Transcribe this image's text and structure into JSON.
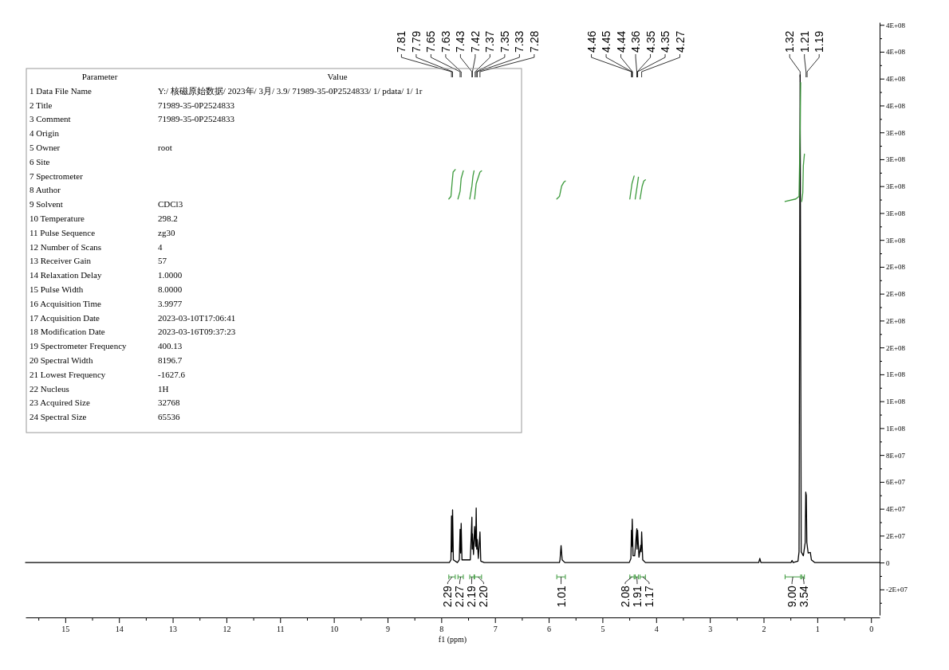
{
  "chart_data": [
    {
      "type": "line",
      "xlabel": "f1 (ppm)",
      "xlim": [
        15.74,
        -0.16
      ],
      "ylim": [
        -41000000.0,
        422000000.0
      ],
      "xticks": [
        15,
        {
          "value": 14.5,
          "label": null
        },
        14,
        {
          "value": 13.5,
          "label": null
        },
        13,
        {
          "value": 12.5,
          "label": null
        },
        12,
        {
          "value": 11.5,
          "label": null
        },
        11,
        {
          "value": 10.5,
          "label": null
        },
        10,
        {
          "value": 9.5,
          "label": null
        },
        9,
        {
          "value": 8.5,
          "label": null
        },
        8,
        {
          "value": 7.5,
          "label": null
        },
        7,
        {
          "value": 6.5,
          "label": null
        },
        6,
        {
          "value": 5.5,
          "label": null
        },
        5,
        {
          "value": 4.5,
          "label": null
        },
        4,
        {
          "value": 3.5,
          "label": null
        },
        3,
        {
          "value": 2.5,
          "label": null
        },
        2,
        {
          "value": 1.5,
          "label": null
        },
        1,
        {
          "value": 0.5,
          "label": null
        },
        0,
        {
          "value": 15.5,
          "label": null
        }
      ],
      "yticks": [
        {
          "value": -21000000.0,
          "label": "-2E+07"
        },
        0,
        {
          "value": 21000000.0,
          "label": "2E+07"
        },
        {
          "value": 42000000.0,
          "label": "4E+07"
        },
        {
          "value": 63000000.0,
          "label": "6E+07"
        },
        {
          "value": 84000000.0,
          "label": "8E+07"
        },
        {
          "value": 105000000.0,
          "label": "1E+08"
        },
        {
          "value": 126000000.0,
          "label": "1E+08"
        },
        {
          "value": 147000000.0,
          "label": "1E+08"
        },
        {
          "value": 168000000.0,
          "label": "2E+08"
        },
        {
          "value": 189000000.0,
          "label": "2E+08"
        },
        {
          "value": 210000000.0,
          "label": "2E+08"
        },
        {
          "value": 231000000.0,
          "label": "2E+08"
        },
        {
          "value": 252000000.0,
          "label": "3E+08"
        },
        {
          "value": 273000000.0,
          "label": "3E+08"
        },
        {
          "value": 294000000.0,
          "label": "3E+08"
        },
        {
          "value": 315000000.0,
          "label": "3E+08"
        },
        {
          "value": 336000000.0,
          "label": "3E+08"
        },
        {
          "value": 357000000.0,
          "label": "4E+08"
        },
        {
          "value": 378000000.0,
          "label": "4E+08"
        },
        {
          "value": 399000000.0,
          "label": "4E+08"
        },
        {
          "value": 420000000.0,
          "label": "4E+08"
        },
        {
          "value": -31500000.0,
          "label": null
        },
        {
          "value": -10500000.0,
          "label": null
        },
        {
          "value": 10500000.0,
          "label": null
        },
        {
          "value": 31500000.0,
          "label": null
        },
        {
          "value": 52500000.0,
          "label": null
        },
        {
          "value": 73500000.0,
          "label": null
        },
        {
          "value": 94500000.0,
          "label": null
        },
        {
          "value": 115500000.0,
          "label": null
        },
        {
          "value": 136500000.0,
          "label": null
        },
        {
          "value": 157500000.0,
          "label": null
        },
        {
          "value": 178500000.0,
          "label": null
        },
        {
          "value": 199500000.0,
          "label": null
        },
        {
          "value": 220500000.0,
          "label": null
        },
        {
          "value": 241500000.0,
          "label": null
        },
        {
          "value": 262500000.0,
          "label": null
        },
        {
          "value": 283500000.0,
          "label": null
        },
        {
          "value": 304500000.0,
          "label": null
        },
        {
          "value": 325500000.0,
          "label": null
        },
        {
          "value": 346500000.0,
          "label": null
        },
        {
          "value": 367500000.0,
          "label": null
        },
        {
          "value": 388500000.0,
          "label": null
        },
        {
          "value": 409500000.0,
          "label": null
        }
      ],
      "series": [
        {
          "type": "line",
          "color": "#000000",
          "x": [
            15.74,
            7.85,
            7.82,
            7.81,
            7.8,
            7.79,
            7.775,
            7.7,
            7.665,
            7.65,
            7.64,
            7.63,
            7.615,
            7.46,
            7.43,
            7.425,
            7.42,
            7.4,
            7.38,
            7.36,
            7.35,
            7.34,
            7.33,
            7.31,
            7.28,
            7.265,
            7.2,
            5.8,
            5.79,
            5.77,
            5.75,
            5.7,
            4.5,
            4.47,
            4.46,
            4.455,
            4.445,
            4.43,
            4.4,
            4.36,
            4.355,
            4.345,
            4.32,
            4.285,
            4.28,
            4.27,
            4.25,
            4.2,
            2.09,
            2.07,
            2.05,
            1.49,
            1.47,
            1.45,
            1.36,
            1.34,
            1.32,
            1.3,
            1.26,
            1.225,
            1.215,
            1.205,
            1.195,
            1.17,
            1.13,
            1.11,
            1.05,
            -0.16
          ],
          "values": [
            0,
            0,
            2100000.0,
            36400000.0,
            8400000.0,
            41200000.0,
            2100000.0,
            0,
            2100000.0,
            26000000.0,
            7400000.0,
            30600000.0,
            2100000.0,
            2100000.0,
            35400000.0,
            10500000.0,
            22600000.0,
            6300000.0,
            28100000.0,
            12600000.0,
            42600000.0,
            10500000.0,
            18000000.0,
            3200000.0,
            23900000.0,
            1100000.0,
            0,
            0,
            2100000.0,
            13200000.0,
            2100000.0,
            0,
            0,
            3200000.0,
            25200000.0,
            12600000.0,
            33900000.0,
            5300000.0,
            5300000.0,
            26500000.0,
            10500000.0,
            25200000.0,
            4200000.0,
            13700000.0,
            8400000.0,
            23900000.0,
            2100000.0,
            0,
            0,
            3200000.0,
            0,
            0,
            1600000.0,
            0,
            1100000.0,
            8400000.0,
            381000000.0,
            8400000.0,
            5300000.0,
            15800000.0,
            55000000.0,
            52500000.0,
            15800000.0,
            7400000.0,
            7900000.0,
            2100000.0,
            0,
            0
          ]
        },
        {
          "type": "line",
          "color": "#3c9a3c",
          "x": [
            7.86,
            7.82,
            7.8,
            7.78,
            7.74
          ],
          "values": [
            284000000.0,
            286000000.0,
            296000000.0,
            305000000.0,
            307000000.0
          ]
        },
        {
          "type": "line",
          "color": "#3c9a3c",
          "x": [
            7.69,
            7.65,
            7.63,
            7.59
          ],
          "values": [
            284000000.0,
            290000000.0,
            300000000.0,
            306000000.0
          ]
        },
        {
          "type": "line",
          "color": "#3c9a3c",
          "x": [
            7.47,
            7.43,
            7.41,
            7.39
          ],
          "values": [
            284000000.0,
            294000000.0,
            302000000.0,
            306000000.0
          ]
        },
        {
          "type": "line",
          "color": "#3c9a3c",
          "x": [
            7.38,
            7.35,
            7.28,
            7.25
          ],
          "values": [
            284000000.0,
            296000000.0,
            305000000.0,
            306000000.0
          ]
        },
        {
          "type": "line",
          "color": "#3c9a3c",
          "x": [
            5.85,
            5.8,
            5.78,
            5.76,
            5.72,
            5.69
          ],
          "values": [
            284000000.0,
            286000000.0,
            290000000.0,
            294000000.0,
            297000000.0,
            298000000.0
          ]
        },
        {
          "type": "line",
          "color": "#3c9a3c",
          "x": [
            4.49,
            4.45,
            4.41
          ],
          "values": [
            284000000.0,
            296000000.0,
            302000000.0
          ]
        },
        {
          "type": "line",
          "color": "#3c9a3c",
          "x": [
            4.39,
            4.35,
            4.33
          ],
          "values": [
            284000000.0,
            295000000.0,
            301000000.0
          ]
        },
        {
          "type": "line",
          "color": "#3c9a3c",
          "x": [
            4.3,
            4.28,
            4.26,
            4.23,
            4.2
          ],
          "values": [
            284000000.0,
            289000000.0,
            294000000.0,
            298000000.0,
            299000000.0
          ]
        },
        {
          "type": "line",
          "color": "#3c9a3c",
          "x": [
            1.6,
            1.4,
            1.34,
            1.32,
            1.31
          ],
          "values": [
            282000000.0,
            284000000.0,
            286000000.0,
            336000000.0,
            375000000.0
          ]
        },
        {
          "type": "line",
          "color": "#3c9a3c",
          "x": [
            1.29,
            1.27,
            1.26,
            1.24
          ],
          "values": [
            282000000.0,
            289000000.0,
            310000000.0,
            319000000.0
          ]
        }
      ],
      "annotations": [
        {
          "text": "7.81",
          "x": 7.81
        },
        {
          "text": "7.79",
          "x": 7.79
        },
        {
          "text": "7.65",
          "x": 7.65
        },
        {
          "text": "7.63",
          "x": 7.63
        },
        {
          "text": "7.43",
          "x": 7.43
        },
        {
          "text": "7.42",
          "x": 7.42
        },
        {
          "text": "7.37",
          "x": 7.37
        },
        {
          "text": "7.35",
          "x": 7.35
        },
        {
          "text": "7.33",
          "x": 7.33
        },
        {
          "text": "7.28",
          "x": 7.28
        },
        {
          "text": "4.46",
          "x": 4.46
        },
        {
          "text": "4.45",
          "x": 4.45
        },
        {
          "text": "4.44",
          "x": 4.44
        },
        {
          "text": "4.36",
          "x": 4.36
        },
        {
          "text": "4.35",
          "x": 4.35
        },
        {
          "text": "4.35",
          "x": 4.345
        },
        {
          "text": "4.27",
          "x": 4.27
        },
        {
          "text": "1.32",
          "x": 1.32
        },
        {
          "text": "1.21",
          "x": 1.21
        },
        {
          "text": "1.19",
          "x": 1.19
        },
        "2.29",
        "2.27",
        "2.19",
        "2.20",
        "1.01",
        "2.08",
        "1.91",
        "1.17",
        "9.00",
        "3.54"
      ]
    },
    {
      "type": "other",
      "annotations": [
        "Parameter",
        "Value"
      ],
      "categories": [
        "1 Data File Name",
        "2 Title",
        "3 Comment",
        "4 Origin",
        "5 Owner",
        "6 Site",
        "7 Spectrometer",
        "8 Author",
        "9 Solvent",
        "10 Temperature",
        "11 Pulse Sequence",
        "12 Number of Scans",
        "13 Receiver Gain",
        "14 Relaxation Delay",
        "15 Pulse Width",
        "16 Acquisition Time",
        "17 Acquisition Date",
        "18 Modification Date",
        "19 Spectrometer Frequency",
        "20 Spectral Width",
        "21 Lowest Frequency",
        "22 Nucleus",
        "23 Acquired Size",
        "24 Spectral Size"
      ],
      "value_labels": [
        "Y:/ 核磁原始数据/ 2023年/ 3月/ 3.9/ 71989-35-0P2524833/ 1/ pdata/ 1/ 1r",
        "71989-35-0P2524833",
        "71989-35-0P2524833",
        null,
        "root",
        null,
        null,
        null,
        "CDCl3",
        "298.2",
        "zg30",
        "4",
        "57",
        "1.0000",
        "8.0000",
        "3.9977",
        "2023-03-10T17:06:41",
        "2023-03-16T09:37:23",
        "400.13",
        "8196.7",
        "-1627.6",
        "1H",
        "32768",
        "65536"
      ]
    }
  ]
}
